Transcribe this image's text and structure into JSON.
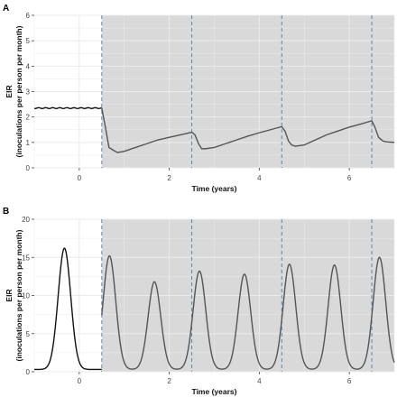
{
  "chart_data": [
    {
      "panel": "A",
      "type": "line",
      "xlabel": "Time (years)",
      "ylabel_line1": "EIR",
      "ylabel_line2": "(inoculations per person per month)",
      "xlim": [
        -1,
        7
      ],
      "ylim": [
        0,
        6
      ],
      "xticks": [
        0,
        2,
        4,
        6
      ],
      "yticks": [
        0,
        1,
        2,
        3,
        4,
        5,
        6
      ],
      "grid": true,
      "shaded_from_x": 0.5,
      "vertical_dashed_lines": [
        0.5,
        2.5,
        4.5,
        6.5
      ],
      "series": [
        {
          "segment": "before",
          "color": "#111111",
          "x": [
            -1.0,
            -0.75,
            -0.5,
            -0.25,
            0.0,
            0.25,
            0.5
          ],
          "y": [
            2.35,
            2.35,
            2.35,
            2.35,
            2.35,
            2.35,
            2.35
          ]
        },
        {
          "segment": "after",
          "color": "#555555",
          "x": [
            0.5,
            0.58,
            0.66,
            0.75,
            0.85,
            1.0,
            1.25,
            1.5,
            1.75,
            2.0,
            2.25,
            2.5,
            2.57,
            2.65,
            2.72,
            2.8,
            3.0,
            3.25,
            3.5,
            3.75,
            4.0,
            4.25,
            4.5,
            4.57,
            4.65,
            4.72,
            4.8,
            5.0,
            5.25,
            5.5,
            5.75,
            6.0,
            6.25,
            6.5,
            6.57,
            6.65,
            6.75,
            6.85,
            7.0
          ],
          "y": [
            2.35,
            1.6,
            0.8,
            0.7,
            0.6,
            0.65,
            0.8,
            0.95,
            1.1,
            1.2,
            1.3,
            1.4,
            1.3,
            0.95,
            0.75,
            0.75,
            0.8,
            0.95,
            1.1,
            1.25,
            1.38,
            1.5,
            1.62,
            1.45,
            1.05,
            0.9,
            0.85,
            0.9,
            1.1,
            1.3,
            1.45,
            1.6,
            1.72,
            1.85,
            1.6,
            1.2,
            1.05,
            1.02,
            1.0
          ]
        }
      ]
    },
    {
      "panel": "B",
      "type": "line",
      "xlabel": "Time (years)",
      "ylabel_line1": "EIR",
      "ylabel_line2": "(inoculations per person per month)",
      "xlim": [
        -1,
        7
      ],
      "ylim": [
        0,
        20
      ],
      "xticks": [
        0,
        2,
        4,
        6
      ],
      "yticks": [
        0,
        5,
        10,
        15,
        20
      ],
      "grid": true,
      "shaded_from_x": 0.5,
      "vertical_dashed_lines": [
        0.5,
        2.5,
        4.5,
        6.5
      ],
      "baseline": 0.3,
      "peak_width_years": 0.14,
      "series": [
        {
          "segment": "before",
          "color": "#111111",
          "peaks": [
            {
              "x": -0.33,
              "y": 16.2
            }
          ]
        },
        {
          "segment": "after",
          "color": "#555555",
          "peaks": [
            {
              "x": 0.67,
              "y": 15.2
            },
            {
              "x": 1.67,
              "y": 11.8
            },
            {
              "x": 2.67,
              "y": 13.2
            },
            {
              "x": 3.67,
              "y": 12.8
            },
            {
              "x": 4.67,
              "y": 14.1
            },
            {
              "x": 5.67,
              "y": 14.0
            },
            {
              "x": 6.67,
              "y": 15.0
            }
          ]
        }
      ]
    }
  ]
}
